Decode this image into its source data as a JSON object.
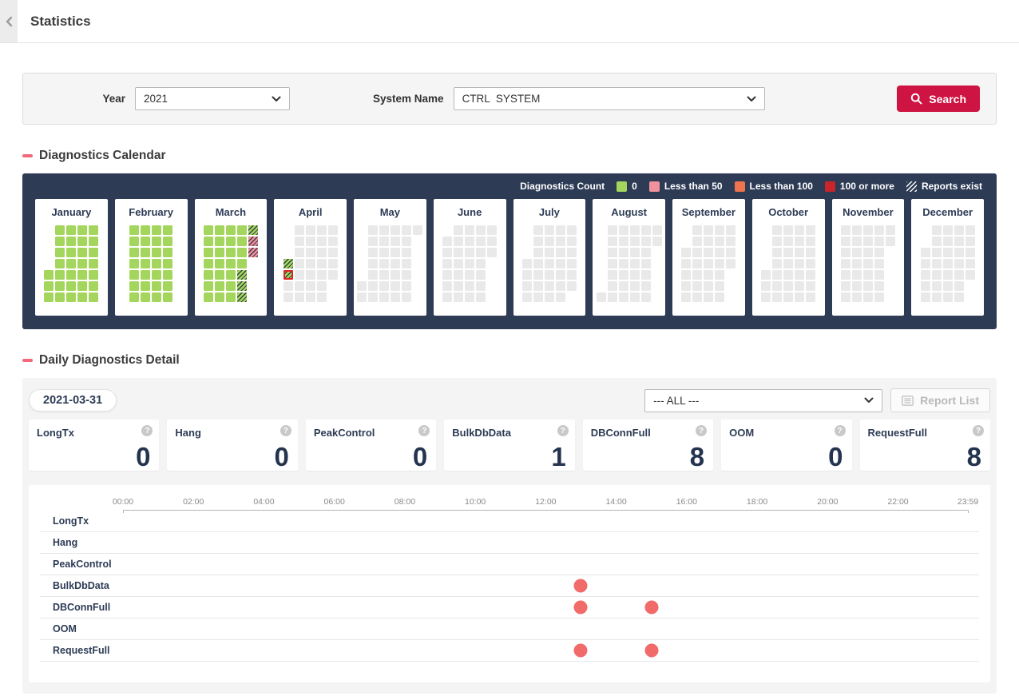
{
  "header": {
    "title": "Statistics"
  },
  "filter": {
    "year_label": "Year",
    "year_value": "2021",
    "system_label": "System Name",
    "system_value": "CTRL  SYSTEM",
    "search_label": "Search"
  },
  "calendar_section": {
    "title": "Diagnostics Calendar",
    "legend": {
      "title": "Diagnostics Count",
      "items": [
        {
          "label": "0",
          "type": "solid",
          "color": "#a4d65e"
        },
        {
          "label": "Less than 50",
          "type": "solid",
          "color": "#f2919e"
        },
        {
          "label": "Less than 100",
          "type": "solid",
          "color": "#ee744e"
        },
        {
          "label": "100 or more",
          "type": "solid",
          "color": "#c9252b"
        },
        {
          "label": "Reports exist",
          "type": "hatch"
        }
      ]
    },
    "months": [
      {
        "name": "January",
        "first_dow": 5,
        "days": 31,
        "default": "green",
        "special": {}
      },
      {
        "name": "February",
        "first_dow": 1,
        "days": 28,
        "default": "green",
        "special": {}
      },
      {
        "name": "March",
        "first_dow": 1,
        "days": 31,
        "default": "green",
        "special": {
          "26": "green hatch",
          "27": "green hatch",
          "28": "green hatch",
          "29": "green hatch",
          "30": "pink hatch",
          "31": "pink hatch"
        }
      },
      {
        "name": "April",
        "first_dow": 4,
        "days": 30,
        "default": "grey",
        "special": {
          "1": "green hatch",
          "2": "green hatch today"
        }
      },
      {
        "name": "May",
        "first_dow": 6,
        "days": 31,
        "default": "grey",
        "special": {}
      },
      {
        "name": "June",
        "first_dow": 2,
        "days": 30,
        "default": "grey",
        "special": {}
      },
      {
        "name": "July",
        "first_dow": 4,
        "days": 31,
        "default": "grey",
        "special": {}
      },
      {
        "name": "August",
        "first_dow": 7,
        "days": 31,
        "default": "grey",
        "special": {}
      },
      {
        "name": "September",
        "first_dow": 3,
        "days": 30,
        "default": "grey",
        "special": {}
      },
      {
        "name": "October",
        "first_dow": 5,
        "days": 31,
        "default": "grey",
        "special": {}
      },
      {
        "name": "November",
        "first_dow": 1,
        "days": 30,
        "default": "grey",
        "special": {}
      },
      {
        "name": "December",
        "first_dow": 3,
        "days": 31,
        "default": "grey",
        "special": {}
      }
    ]
  },
  "detail_section": {
    "title": "Daily Diagnostics Detail",
    "date": "2021-03-31",
    "filter_value": "--- ALL ---",
    "report_list_label": "Report List",
    "cards": [
      {
        "label": "LongTx",
        "value": "0"
      },
      {
        "label": "Hang",
        "value": "0"
      },
      {
        "label": "PeakControl",
        "value": "0"
      },
      {
        "label": "BulkDbData",
        "value": "1"
      },
      {
        "label": "DBConnFull",
        "value": "8"
      },
      {
        "label": "OOM",
        "value": "0"
      },
      {
        "label": "RequestFull",
        "value": "8"
      }
    ]
  },
  "chart_data": {
    "type": "scatter",
    "title": "Daily diagnostics timeline for 2021-03-31",
    "x_axis": {
      "labels": [
        "00:00",
        "02:00",
        "04:00",
        "06:00",
        "08:00",
        "10:00",
        "12:00",
        "14:00",
        "16:00",
        "18:00",
        "20:00",
        "22:00",
        "23:59"
      ],
      "hours": [
        0,
        2,
        4,
        6,
        8,
        10,
        12,
        14,
        16,
        18,
        20,
        22,
        23.983
      ],
      "range_hours": [
        0,
        23.983
      ]
    },
    "rows": [
      {
        "name": "LongTx",
        "events": []
      },
      {
        "name": "Hang",
        "events": []
      },
      {
        "name": "PeakControl",
        "events": []
      },
      {
        "name": "BulkDbData",
        "events": [
          "13:00"
        ]
      },
      {
        "name": "DBConnFull",
        "events": [
          "13:00",
          "15:00"
        ]
      },
      {
        "name": "OOM",
        "events": []
      },
      {
        "name": "RequestFull",
        "events": [
          "13:00",
          "15:00"
        ]
      }
    ],
    "dot_color": "#f26b6b",
    "legend_position": "none",
    "grid": "row-separators"
  },
  "colors": {
    "navy_panel": "#2d3b55",
    "accent_red": "#ce1442",
    "section_dash": "#f2697b",
    "cell_green": "#a4d65e",
    "cell_pink": "#f2919e",
    "cell_grey": "#e9e9e9",
    "today_outline": "#e02420",
    "event_dot": "#f26b6b"
  }
}
